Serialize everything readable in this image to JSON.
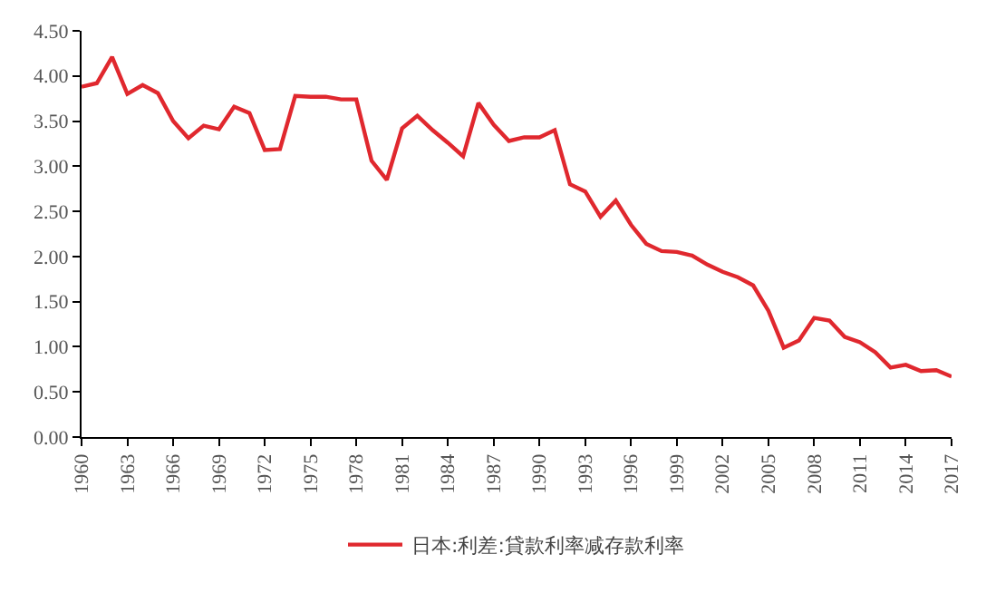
{
  "chart_data": {
    "type": "line",
    "x": [
      1960,
      1961,
      1962,
      1963,
      1964,
      1965,
      1966,
      1967,
      1968,
      1969,
      1970,
      1971,
      1972,
      1973,
      1974,
      1975,
      1976,
      1977,
      1978,
      1979,
      1980,
      1981,
      1982,
      1983,
      1984,
      1985,
      1986,
      1987,
      1988,
      1989,
      1990,
      1991,
      1992,
      1993,
      1994,
      1995,
      1996,
      1997,
      1998,
      1999,
      2000,
      2001,
      2002,
      2003,
      2004,
      2005,
      2006,
      2007,
      2008,
      2009,
      2010,
      2011,
      2012,
      2013,
      2014,
      2015,
      2016,
      2017
    ],
    "series": [
      {
        "name": "日本:利差:貸款利率减存款利率",
        "color": "#e0282e",
        "values": [
          3.88,
          3.92,
          4.21,
          3.8,
          3.9,
          3.81,
          3.5,
          3.31,
          3.45,
          3.41,
          3.66,
          3.59,
          3.18,
          3.19,
          3.78,
          3.77,
          3.77,
          3.74,
          3.74,
          3.06,
          2.85,
          3.42,
          3.56,
          3.4,
          3.26,
          3.11,
          3.7,
          3.46,
          3.28,
          3.32,
          3.32,
          3.4,
          2.8,
          2.72,
          2.44,
          2.62,
          2.35,
          2.14,
          2.06,
          2.05,
          2.01,
          1.91,
          1.83,
          1.77,
          1.68,
          1.4,
          0.99,
          1.07,
          1.32,
          1.29,
          1.11,
          1.05,
          0.94,
          0.77,
          0.8,
          0.73,
          0.74,
          0.67
        ]
      }
    ],
    "xlim": [
      1960,
      2017
    ],
    "xticks": [
      1960,
      1963,
      1966,
      1969,
      1972,
      1975,
      1978,
      1981,
      1984,
      1987,
      1990,
      1993,
      1996,
      1999,
      2002,
      2005,
      2008,
      2011,
      2014,
      2017
    ],
    "ylim": [
      0,
      4.5
    ],
    "yticks": [
      {
        "value": 0,
        "label": "0.00"
      },
      {
        "value": 0.5,
        "label": "0.50"
      },
      {
        "value": 1,
        "label": "1.00"
      },
      {
        "value": 1.5,
        "label": "1.50"
      },
      {
        "value": 2,
        "label": "2.00"
      },
      {
        "value": 2.5,
        "label": "2.50"
      },
      {
        "value": 3,
        "label": "3.00"
      },
      {
        "value": 3.5,
        "label": "3.50"
      },
      {
        "value": 4,
        "label": "4.00"
      },
      {
        "value": 4.5,
        "label": "4.50"
      }
    ],
    "grid": false,
    "legend": "bottom",
    "marker": "none",
    "line_style": "solid"
  }
}
